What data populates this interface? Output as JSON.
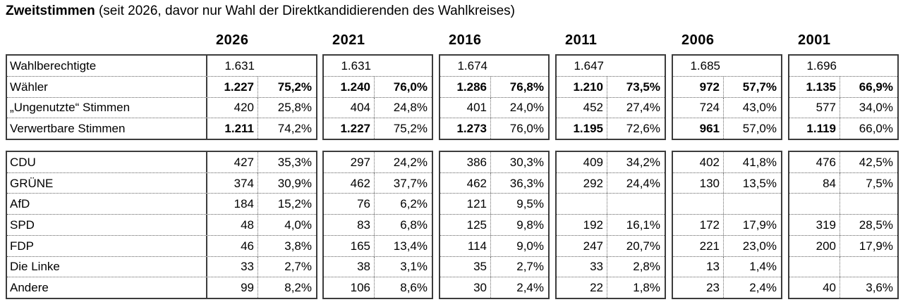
{
  "title": {
    "main": "Zweitstimmen",
    "suffix": " (seit 2026, davor nur Wahl der Direktkandidierenden des Wahlkreises)"
  },
  "years": [
    "2026",
    "2021",
    "2016",
    "2011",
    "2006",
    "2001"
  ],
  "summary_table": {
    "rows": [
      {
        "label": "Wahlberechtigte",
        "emphasis": "plain",
        "single_value": true,
        "cells": [
          [
            "1.631",
            ""
          ],
          [
            "1.631",
            ""
          ],
          [
            "1.674",
            ""
          ],
          [
            "1.647",
            ""
          ],
          [
            "1.685",
            ""
          ],
          [
            "1.696",
            ""
          ]
        ]
      },
      {
        "label": "Wähler",
        "emphasis": "bold_both",
        "single_value": false,
        "cells": [
          [
            "1.227",
            "75,2%"
          ],
          [
            "1.240",
            "76,0%"
          ],
          [
            "1.286",
            "76,8%"
          ],
          [
            "1.210",
            "73,5%"
          ],
          [
            "972",
            "57,7%"
          ],
          [
            "1.135",
            "66,9%"
          ]
        ]
      },
      {
        "label": "„Ungenutzte“ Stimmen",
        "emphasis": "plain",
        "single_value": false,
        "cells": [
          [
            "420",
            "25,8%"
          ],
          [
            "404",
            "24,8%"
          ],
          [
            "401",
            "24,0%"
          ],
          [
            "452",
            "27,4%"
          ],
          [
            "724",
            "43,0%"
          ],
          [
            "577",
            "34,0%"
          ]
        ]
      },
      {
        "label": "Verwertbare Stimmen",
        "emphasis": "bold_count",
        "single_value": false,
        "cells": [
          [
            "1.211",
            "74,2%"
          ],
          [
            "1.227",
            "75,2%"
          ],
          [
            "1.273",
            "76,0%"
          ],
          [
            "1.195",
            "72,6%"
          ],
          [
            "961",
            "57,0%"
          ],
          [
            "1.119",
            "66,0%"
          ]
        ]
      }
    ]
  },
  "party_table": {
    "rows": [
      {
        "label": "CDU",
        "emphasis": "plain",
        "single_value": false,
        "cells": [
          [
            "427",
            "35,3%"
          ],
          [
            "297",
            "24,2%"
          ],
          [
            "386",
            "30,3%"
          ],
          [
            "409",
            "34,2%"
          ],
          [
            "402",
            "41,8%"
          ],
          [
            "476",
            "42,5%"
          ]
        ]
      },
      {
        "label": "GRÜNE",
        "emphasis": "plain",
        "single_value": false,
        "cells": [
          [
            "374",
            "30,9%"
          ],
          [
            "462",
            "37,7%"
          ],
          [
            "462",
            "36,3%"
          ],
          [
            "292",
            "24,4%"
          ],
          [
            "130",
            "13,5%"
          ],
          [
            "84",
            "7,5%"
          ]
        ]
      },
      {
        "label": "AfD",
        "emphasis": "plain",
        "single_value": false,
        "cells": [
          [
            "184",
            "15,2%"
          ],
          [
            "76",
            "6,2%"
          ],
          [
            "121",
            "9,5%"
          ],
          [
            "",
            ""
          ],
          [
            "",
            ""
          ],
          [
            "",
            ""
          ]
        ]
      },
      {
        "label": "SPD",
        "emphasis": "plain",
        "single_value": false,
        "cells": [
          [
            "48",
            "4,0%"
          ],
          [
            "83",
            "6,8%"
          ],
          [
            "125",
            "9,8%"
          ],
          [
            "192",
            "16,1%"
          ],
          [
            "172",
            "17,9%"
          ],
          [
            "319",
            "28,5%"
          ]
        ]
      },
      {
        "label": "FDP",
        "emphasis": "plain",
        "single_value": false,
        "cells": [
          [
            "46",
            "3,8%"
          ],
          [
            "165",
            "13,4%"
          ],
          [
            "114",
            "9,0%"
          ],
          [
            "247",
            "20,7%"
          ],
          [
            "221",
            "23,0%"
          ],
          [
            "200",
            "17,9%"
          ]
        ]
      },
      {
        "label": "Die Linke",
        "emphasis": "plain",
        "single_value": false,
        "cells": [
          [
            "33",
            "2,7%"
          ],
          [
            "38",
            "3,1%"
          ],
          [
            "35",
            "2,7%"
          ],
          [
            "33",
            "2,8%"
          ],
          [
            "13",
            "1,4%"
          ],
          [
            "",
            ""
          ]
        ]
      },
      {
        "label": "Andere",
        "emphasis": "plain",
        "single_value": false,
        "cells": [
          [
            "99",
            "8,2%"
          ],
          [
            "106",
            "8,6%"
          ],
          [
            "30",
            "2,4%"
          ],
          [
            "22",
            "1,8%"
          ],
          [
            "23",
            "2,4%"
          ],
          [
            "40",
            "3,6%"
          ]
        ]
      }
    ]
  }
}
